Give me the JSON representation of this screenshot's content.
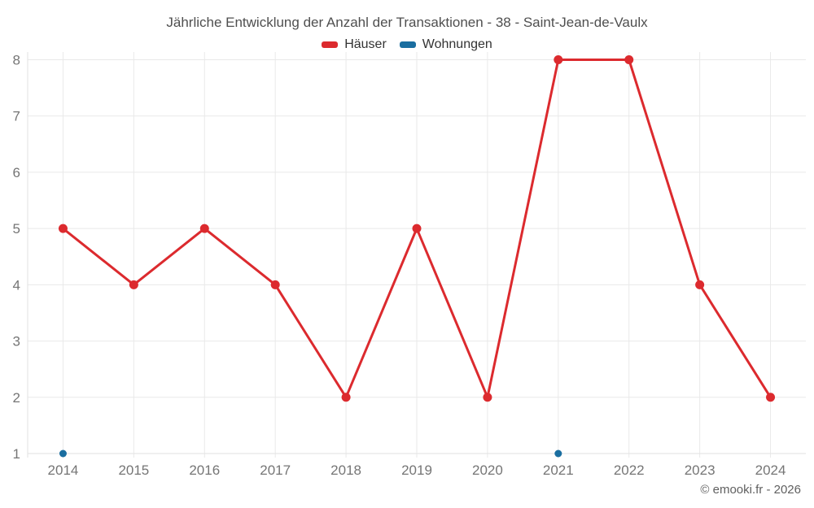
{
  "header": {
    "title": "Jährliche Entwicklung der Anzahl der Transaktionen - 38 - Saint-Jean-de-Vaulx"
  },
  "legend": {
    "items": [
      {
        "label": "Häuser",
        "color": "#dc2a2e"
      },
      {
        "label": "Wohnungen",
        "color": "#1a6ea0"
      }
    ]
  },
  "footer": {
    "copyright": "© emooki.fr - 2026"
  },
  "colors": {
    "grid": "#e9e9e9",
    "axis_line": "#e2e2e2",
    "tick_label": "#757575"
  },
  "chart_data": {
    "type": "line",
    "title": "Jährliche Entwicklung der Anzahl der Transaktionen - 38 - Saint-Jean-de-Vaulx",
    "categories": [
      "2014",
      "2015",
      "2016",
      "2017",
      "2018",
      "2019",
      "2020",
      "2021",
      "2022",
      "2023",
      "2024"
    ],
    "series": [
      {
        "name": "Häuser",
        "color": "#dc2a2e",
        "values": [
          5,
          4,
          5,
          4,
          2,
          5,
          2,
          8,
          8,
          4,
          2
        ],
        "marker_radius": 5.5,
        "line_width": 3
      },
      {
        "name": "Wohnungen",
        "color": "#1a6ea0",
        "values": [
          1,
          null,
          null,
          null,
          null,
          null,
          null,
          1,
          null,
          null,
          null
        ],
        "marker_radius": 4.5,
        "line_width": 0
      }
    ],
    "y_ticks": [
      1,
      2,
      3,
      4,
      5,
      6,
      7,
      8
    ],
    "ylim": [
      1,
      8
    ],
    "xlabel": "",
    "ylabel": "",
    "grid": true,
    "legend_position": "top"
  }
}
